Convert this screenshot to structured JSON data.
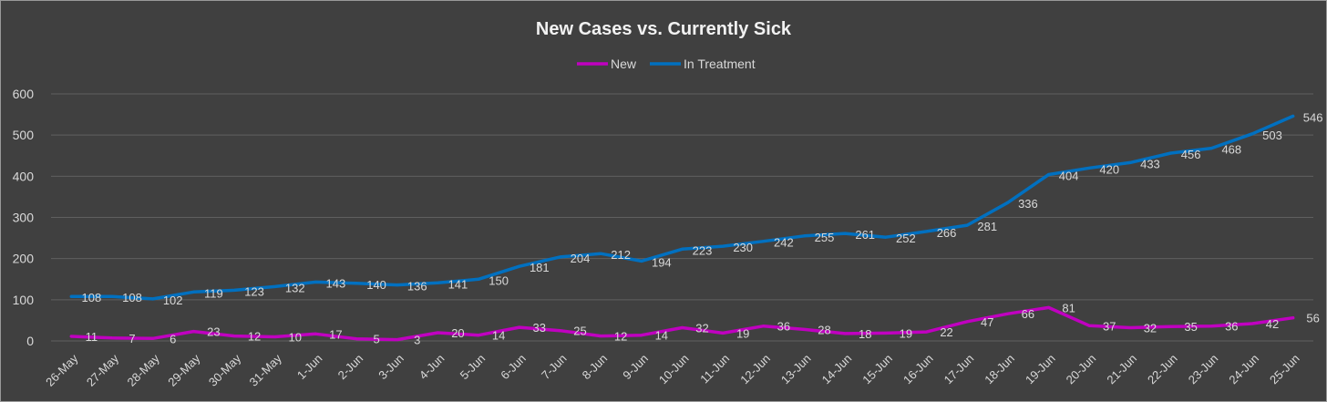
{
  "chart_data": {
    "type": "line",
    "title": "New Cases vs. Currently Sick",
    "xlabel": "",
    "ylabel": "",
    "ylim": [
      0,
      600
    ],
    "yticks": [
      0,
      100,
      200,
      300,
      400,
      500,
      600
    ],
    "grid": true,
    "legend_position": "top-center",
    "categories": [
      "26-May",
      "27-May",
      "28-May",
      "29-May",
      "30-May",
      "31-May",
      "1-Jun",
      "2-Jun",
      "3-Jun",
      "4-Jun",
      "5-Jun",
      "6-Jun",
      "7-Jun",
      "8-Jun",
      "9-Jun",
      "10-Jun",
      "11-Jun",
      "12-Jun",
      "13-Jun",
      "14-Jun",
      "15-Jun",
      "16-Jun",
      "17-Jun",
      "18-Jun",
      "19-Jun",
      "20-Jun",
      "21-Jun",
      "22-Jun",
      "23-Jun",
      "24-Jun",
      "25-Jun"
    ],
    "series": [
      {
        "name": "New",
        "color": "#c000c0",
        "values": [
          11,
          7,
          6,
          23,
          12,
          10,
          17,
          5,
          3,
          20,
          14,
          33,
          25,
          12,
          14,
          32,
          19,
          36,
          28,
          18,
          19,
          22,
          47,
          66,
          81,
          37,
          32,
          35,
          36,
          42,
          56
        ]
      },
      {
        "name": "In Treatment",
        "color": "#0070c0",
        "values": [
          108,
          108,
          102,
          119,
          123,
          132,
          143,
          140,
          136,
          141,
          150,
          181,
          204,
          212,
          194,
          223,
          230,
          242,
          255,
          261,
          252,
          266,
          281,
          336,
          404,
          420,
          433,
          456,
          468,
          503,
          546
        ]
      }
    ]
  },
  "colors": {
    "background": "#404040",
    "gridline": "#5f5f5f",
    "text": "#d9d9d9"
  }
}
